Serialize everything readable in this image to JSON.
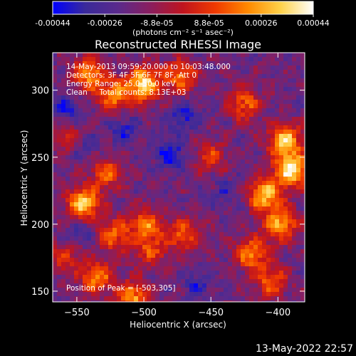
{
  "colorbar": {
    "ticks": [
      "-0.00044",
      "-0.00026",
      "-8.8e-05",
      "8.8e-05",
      "0.00026",
      "0.00044"
    ],
    "unit_label": "(photons cm⁻² s⁻¹ asec⁻²)"
  },
  "annotations": {
    "time_range": "14-May-2013 09:59:20.000 to 10:03:48.000",
    "detectors": "Detectors: 3F 4F 5F 6F 7F 8F, Att 0",
    "energy": "Energy Range: 25.0-50.0 keV",
    "clean": "Clean     Total counts: 8.13E+03",
    "peak": "Position of Peak = [-503,305]"
  },
  "footer": {
    "timestamp": "13-May-2022 22:57"
  },
  "chart_data": {
    "type": "heatmap",
    "title": "Reconstructed RHESSI Image",
    "xlabel": "Heliocentric X (arcsec)",
    "ylabel": "Heliocentric Y (arcsec)",
    "xlim": [
      -568,
      -380
    ],
    "ylim": [
      142,
      328
    ],
    "xticks": [
      -550,
      -500,
      -450,
      -400
    ],
    "yticks": [
      150,
      200,
      250,
      300
    ],
    "grid": false,
    "colorbar_range": [
      -0.00044,
      0.00044
    ],
    "colormap": [
      "#0000ff",
      "#3a2a9a",
      "#5a2a8c",
      "#8a1e5e",
      "#c0141e",
      "#f03a00",
      "#ff8a00",
      "#ffd24a",
      "#ffffff"
    ],
    "peak": [
      -503,
      305
    ],
    "bright_regions": [
      {
        "x": -541,
        "y": 312,
        "level": 0.75
      },
      {
        "x": -522,
        "y": 296,
        "level": 0.7
      },
      {
        "x": -500,
        "y": 305,
        "level": 1.0
      },
      {
        "x": -472,
        "y": 310,
        "level": 0.65
      },
      {
        "x": -545,
        "y": 215,
        "level": 0.95
      },
      {
        "x": -528,
        "y": 238,
        "level": 0.55
      },
      {
        "x": -522,
        "y": 192,
        "level": 0.6
      },
      {
        "x": -498,
        "y": 200,
        "level": 0.65
      },
      {
        "x": -495,
        "y": 180,
        "level": 0.5
      },
      {
        "x": -470,
        "y": 192,
        "level": 0.6
      },
      {
        "x": -450,
        "y": 250,
        "level": 0.45
      },
      {
        "x": -395,
        "y": 262,
        "level": 0.95
      },
      {
        "x": -390,
        "y": 240,
        "level": 1.0
      },
      {
        "x": -410,
        "y": 222,
        "level": 0.9
      },
      {
        "x": -398,
        "y": 200,
        "level": 0.8
      },
      {
        "x": -425,
        "y": 290,
        "level": 0.6
      },
      {
        "x": -420,
        "y": 178,
        "level": 0.7
      },
      {
        "x": -405,
        "y": 158,
        "level": 0.6
      },
      {
        "x": -535,
        "y": 160,
        "level": 0.7
      },
      {
        "x": -508,
        "y": 145,
        "level": 0.75
      },
      {
        "x": -560,
        "y": 175,
        "level": 0.45
      },
      {
        "x": -556,
        "y": 265,
        "level": 0.4
      }
    ],
    "dark_regions": [
      {
        "x": -480,
        "y": 252,
        "level": 1.0
      },
      {
        "x": -558,
        "y": 285,
        "level": 0.8
      },
      {
        "x": -548,
        "y": 195,
        "level": 0.55
      },
      {
        "x": -515,
        "y": 270,
        "level": 0.7
      },
      {
        "x": -470,
        "y": 280,
        "level": 0.75
      },
      {
        "x": -460,
        "y": 155,
        "level": 0.6
      },
      {
        "x": -440,
        "y": 225,
        "level": 0.45
      },
      {
        "x": -545,
        "y": 258,
        "level": 0.6
      }
    ]
  }
}
